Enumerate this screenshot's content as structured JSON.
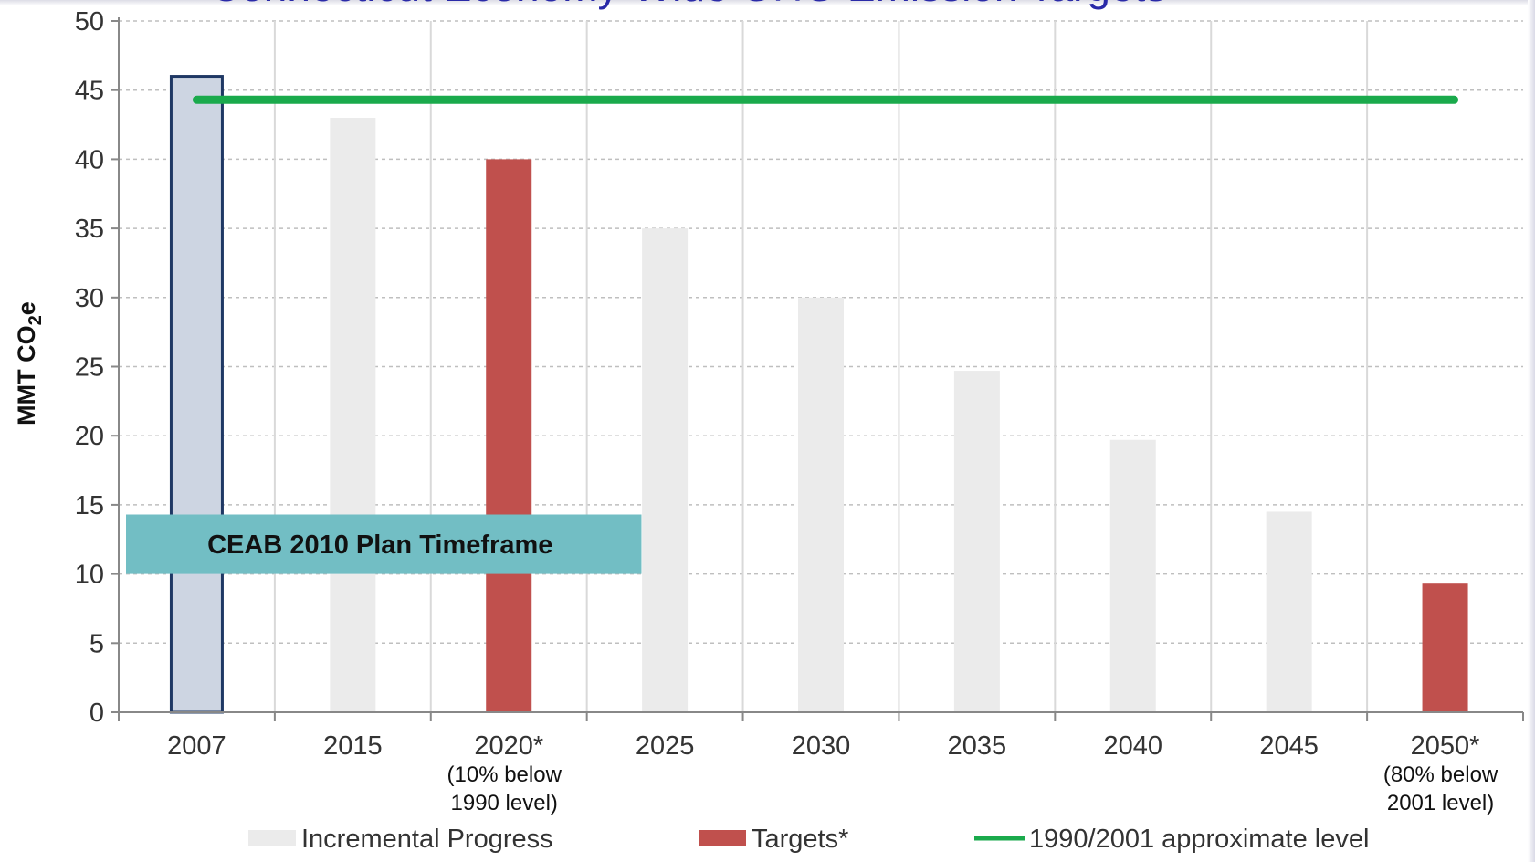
{
  "title": "Connecticut Economy-Wide GHG Emission Targets",
  "chart_data": {
    "type": "bar",
    "ylabel": "MMT CO2e",
    "ylim": [
      0,
      50
    ],
    "yticks": [
      0,
      5,
      10,
      15,
      20,
      25,
      30,
      35,
      40,
      45,
      50
    ],
    "grid": true,
    "legend_position": "bottom",
    "categories": [
      "2007",
      "2015",
      "2020*",
      "2025",
      "2030",
      "2035",
      "2040",
      "2045",
      "2050*"
    ],
    "category_notes": [
      {
        "category": "2020*",
        "lines": [
          "(10% below",
          "1990 level)"
        ]
      },
      {
        "category": "2050*",
        "lines": [
          "(80% below",
          "2001 level)"
        ]
      }
    ],
    "series": [
      {
        "name": "Incremental Progress",
        "color": "#ebebeb",
        "values": [
          46,
          43,
          40,
          35,
          30,
          24.7,
          19.7,
          14.5,
          9.3
        ]
      },
      {
        "name": "Targets*",
        "color": "#c0504d",
        "values": [
          null,
          null,
          40,
          null,
          null,
          null,
          null,
          null,
          9.3
        ]
      },
      {
        "name": "1990/2001 approximate level",
        "color": "#1aaa4c",
        "type": "line",
        "y": 44.3
      }
    ],
    "highlight": {
      "category": "2007",
      "value": 46,
      "fill": "#cdd5e2",
      "border": "#1f3864"
    },
    "annotation": {
      "text": "CEAB 2010 Plan Timeframe",
      "from": "2007",
      "to": "2025",
      "range": [
        10,
        14.3
      ],
      "color": "#72bec4"
    }
  }
}
